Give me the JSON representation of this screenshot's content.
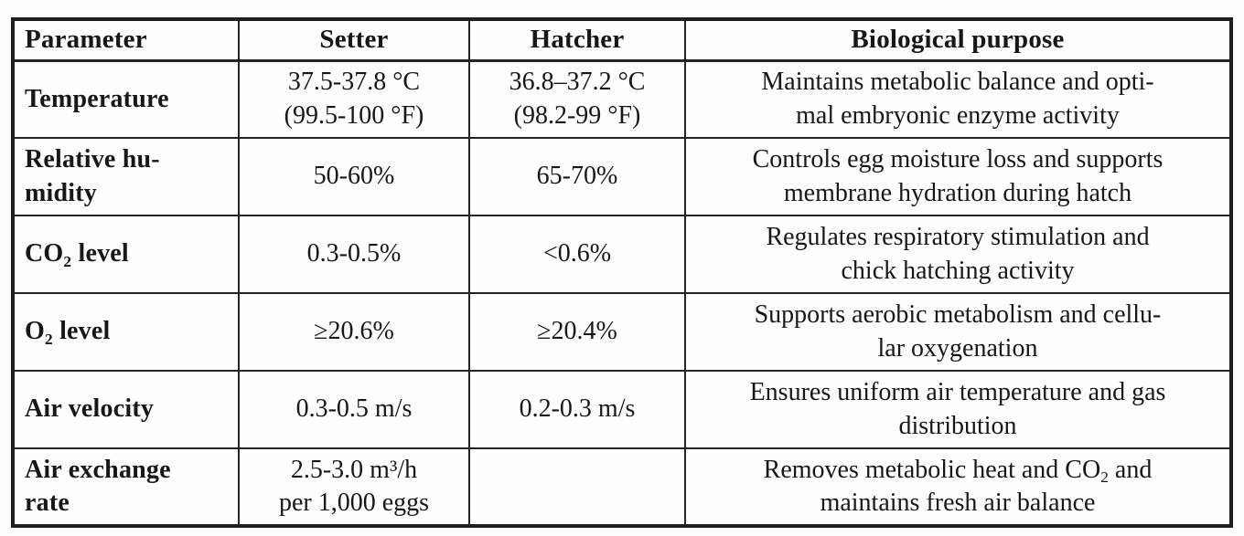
{
  "table": {
    "columns": [
      "Parameter",
      "Setter",
      "Hatcher",
      "Biological purpose"
    ],
    "rows": [
      {
        "parameter": "Temperature",
        "setter": "37.5-37.8 °C\n(99.5-100 °F)",
        "hatcher": "36.8–37.2 °C\n(98.2-99 °F)",
        "purpose": "Maintains metabolic balance and opti-\nmal embryonic enzyme activity"
      },
      {
        "parameter": "Relative hu-\nmidity",
        "setter": "50-60%",
        "hatcher": "65-70%",
        "purpose": "Controls egg moisture loss and supports\nmembrane hydration during hatch"
      },
      {
        "parameter": "CO~2~ level",
        "setter": "0.3-0.5%",
        "hatcher": "<0.6%",
        "purpose": "Regulates respiratory stimulation and\nchick hatching activity"
      },
      {
        "parameter": "O~2~ level",
        "setter": "≥20.6%",
        "hatcher": "≥20.4%",
        "purpose": "Supports aerobic metabolism and cellu-\nlar oxygenation"
      },
      {
        "parameter": "Air velocity",
        "setter": "0.3-0.5 m/s",
        "hatcher": "0.2-0.3 m/s",
        "purpose": "Ensures uniform air temperature and gas\ndistribution"
      },
      {
        "parameter": "Air exchange\nrate",
        "setter": "2.5-3.0 m³/h\nper 1,000 eggs",
        "hatcher": "",
        "purpose": "Removes metabolic heat and CO~2~ and\nmaintains fresh air balance"
      }
    ]
  },
  "colors": {
    "text": "#171717",
    "border": "#242424",
    "background": "#fefefe"
  }
}
